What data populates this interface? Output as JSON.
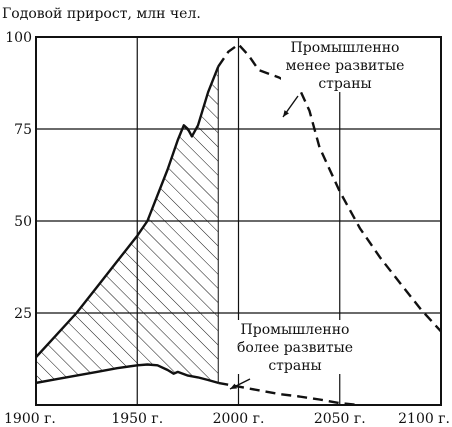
{
  "chart_data": {
    "type": "line",
    "title": "",
    "ylabel": "Годовой прирост, млн чел.",
    "xlabel": "",
    "xlim": [
      1900,
      2100
    ],
    "ylim": [
      0,
      100
    ],
    "x_ticks": [
      1900,
      1950,
      2000,
      2050,
      2100
    ],
    "x_tick_labels": [
      "1900 г.",
      "1950 г.",
      "2000 г.",
      "2050 г.",
      "2100 г."
    ],
    "y_ticks": [
      25,
      50,
      75,
      100
    ],
    "y_tick_labels": [
      "25",
      "50",
      "75",
      "100"
    ],
    "grid": true,
    "series": [
      {
        "name": "Промышленно менее развитые страны",
        "label_lines": [
          "Промышленно",
          "менее развитые",
          "страны"
        ],
        "observed_end": 1990,
        "points": [
          [
            1900,
            13
          ],
          [
            1910,
            19
          ],
          [
            1920,
            25
          ],
          [
            1930,
            32
          ],
          [
            1940,
            39
          ],
          [
            1950,
            46
          ],
          [
            1955,
            50
          ],
          [
            1960,
            57
          ],
          [
            1965,
            64
          ],
          [
            1970,
            72
          ],
          [
            1973,
            76
          ],
          [
            1975,
            75
          ],
          [
            1977,
            73
          ],
          [
            1980,
            76
          ],
          [
            1985,
            85
          ],
          [
            1990,
            92
          ],
          [
            1995,
            96
          ],
          [
            2000,
            98
          ],
          [
            2005,
            95
          ],
          [
            2010,
            91
          ],
          [
            2020,
            89
          ],
          [
            2030,
            86
          ],
          [
            2035,
            80
          ],
          [
            2040,
            70
          ],
          [
            2050,
            58
          ],
          [
            2060,
            48
          ],
          [
            2070,
            40
          ],
          [
            2080,
            33
          ],
          [
            2090,
            26
          ],
          [
            2100,
            20
          ]
        ]
      },
      {
        "name": "Промышленно более развитые страны",
        "label_lines": [
          "Промышленно",
          "более развитые",
          "страны"
        ],
        "observed_end": 1990,
        "points": [
          [
            1900,
            6
          ],
          [
            1910,
            7
          ],
          [
            1920,
            8
          ],
          [
            1930,
            9
          ],
          [
            1940,
            10
          ],
          [
            1950,
            10.8
          ],
          [
            1955,
            11
          ],
          [
            1960,
            10.8
          ],
          [
            1965,
            9.5
          ],
          [
            1968,
            8.5
          ],
          [
            1970,
            9
          ],
          [
            1975,
            8
          ],
          [
            1980,
            7.5
          ],
          [
            1985,
            6.8
          ],
          [
            1990,
            6
          ],
          [
            2000,
            5
          ],
          [
            2010,
            4
          ],
          [
            2020,
            3
          ],
          [
            2030,
            2.3
          ],
          [
            2040,
            1.5
          ],
          [
            2050,
            0.5
          ],
          [
            2060,
            0
          ]
        ]
      }
    ],
    "shaded_region": {
      "between": [
        "Промышленно менее развитые страны",
        "Промышленно более развитые страны"
      ],
      "from": 1900,
      "to": 1990,
      "pattern": "diagonal-hatch"
    },
    "colors": {
      "line": "#111111",
      "grid": "#111111",
      "background": "#ffffff"
    }
  }
}
